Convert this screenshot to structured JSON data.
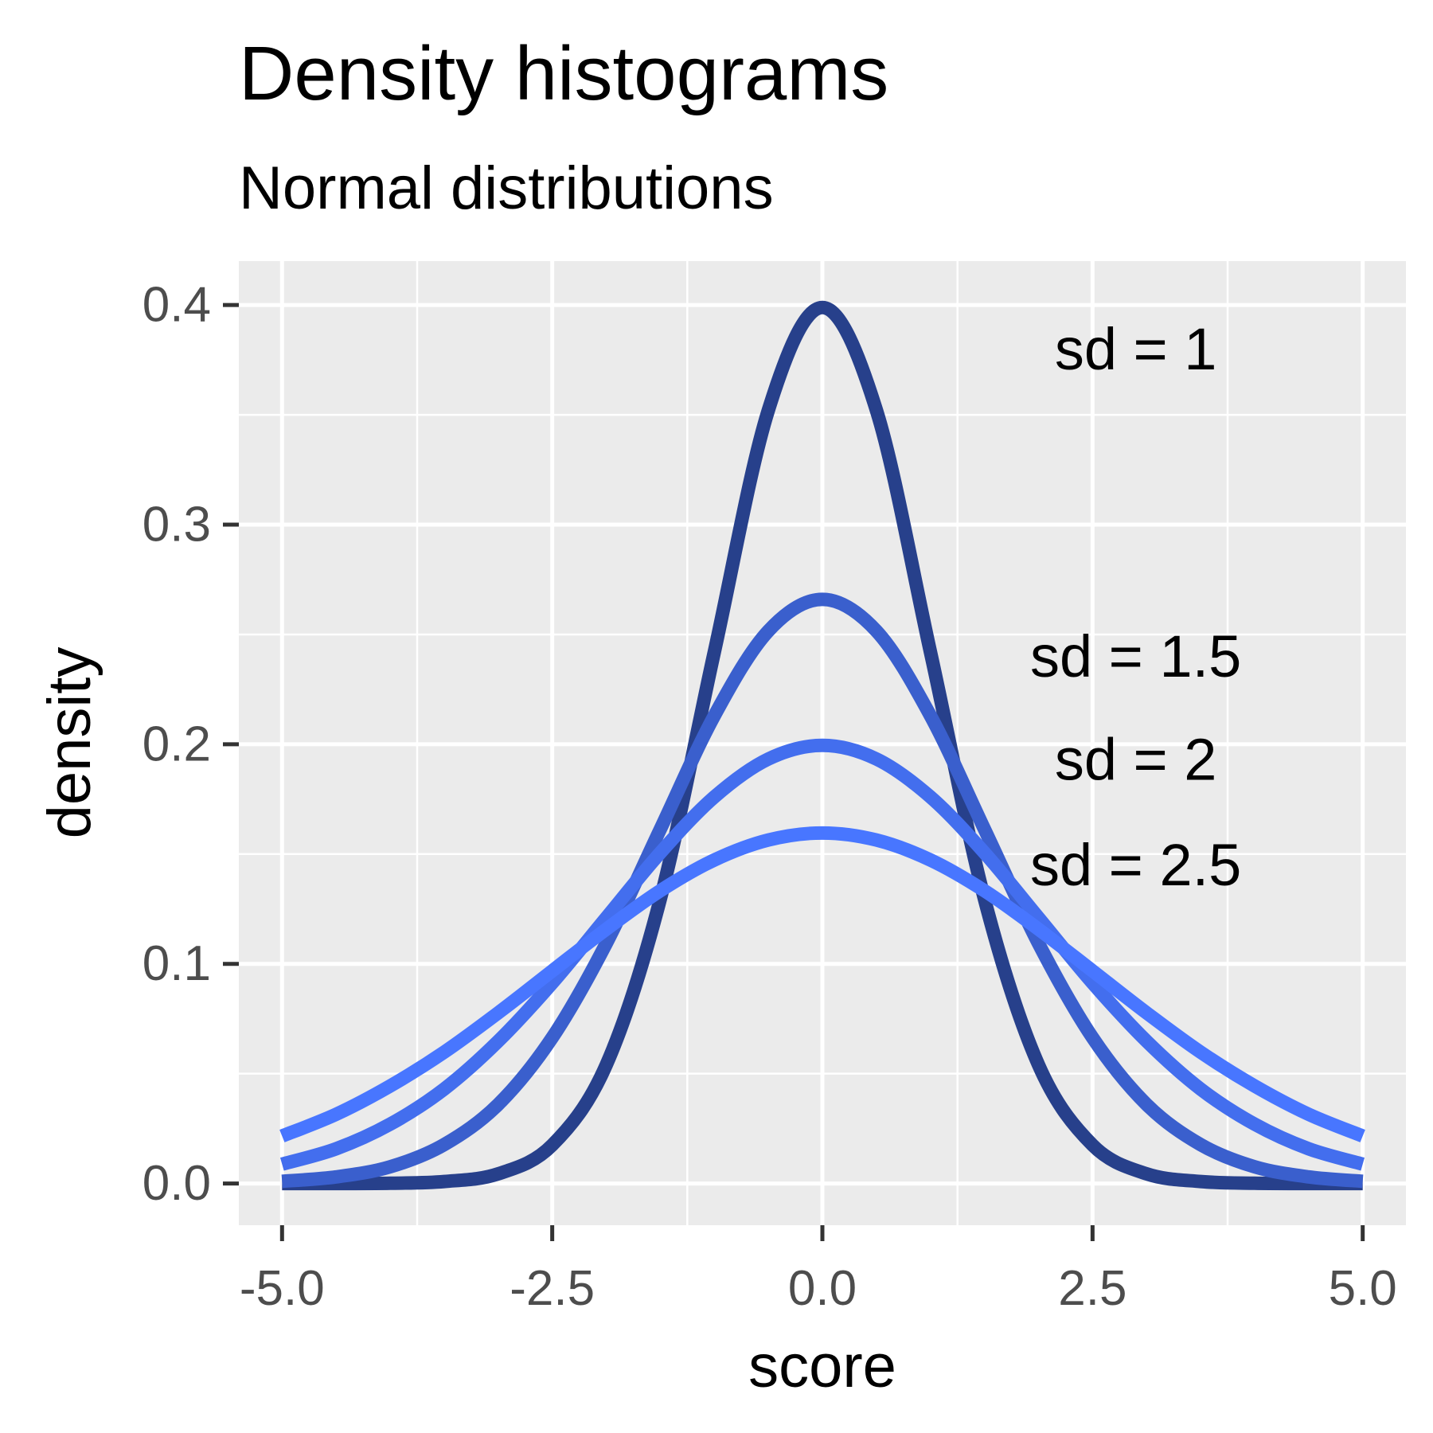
{
  "chart_data": {
    "type": "line",
    "title": "Density histograms",
    "subtitle": "Normal distributions",
    "xlabel": "score",
    "ylabel": "density",
    "xlim": [
      -5.4,
      5.4
    ],
    "ylim": [
      -0.019,
      0.42
    ],
    "x_ticks": [
      -5.0,
      -2.5,
      0.0,
      2.5,
      5.0
    ],
    "x_tick_labels": [
      "-5.0",
      "-2.5",
      "0.0",
      "2.5",
      "5.0"
    ],
    "y_ticks": [
      0.0,
      0.1,
      0.2,
      0.3,
      0.4
    ],
    "y_tick_labels": [
      "0.0",
      "0.1",
      "0.2",
      "0.3",
      "0.4"
    ],
    "grid": true,
    "background": "#ebebeb",
    "x": [
      -5,
      -4.5,
      -4,
      -3.5,
      -3,
      -2.5,
      -2,
      -1.5,
      -1,
      -0.5,
      0,
      0.5,
      1,
      1.5,
      2,
      2.5,
      3,
      3.5,
      4,
      4.5,
      5
    ],
    "series": [
      {
        "sd": 1,
        "color": "#27408b",
        "values": [
          0.0,
          0.0,
          0.0001,
          0.0009,
          0.0044,
          0.0175,
          0.054,
          0.1295,
          0.242,
          0.3521,
          0.3989,
          0.3521,
          0.242,
          0.1295,
          0.054,
          0.0175,
          0.0044,
          0.0009,
          0.0001,
          0.0,
          0.0
        ]
      },
      {
        "sd": 1.5,
        "color": "#3a5fcd",
        "values": [
          0.001,
          0.003,
          0.0076,
          0.0177,
          0.036,
          0.0664,
          0.1093,
          0.1613,
          0.213,
          0.2516,
          0.266,
          0.2516,
          0.213,
          0.1613,
          0.1093,
          0.0664,
          0.036,
          0.0177,
          0.0076,
          0.003,
          0.001
        ]
      },
      {
        "sd": 2,
        "color": "#436eee",
        "values": [
          0.0088,
          0.0158,
          0.027,
          0.043,
          0.0648,
          0.0913,
          0.121,
          0.1506,
          0.176,
          0.1933,
          0.1995,
          0.1933,
          0.176,
          0.1506,
          0.121,
          0.0913,
          0.0648,
          0.043,
          0.027,
          0.0158,
          0.0088
        ]
      },
      {
        "sd": 2.5,
        "color": "#4876ff",
        "values": [
          0.0216,
          0.0315,
          0.0444,
          0.0598,
          0.0777,
          0.0968,
          0.1158,
          0.1333,
          0.1473,
          0.1564,
          0.1596,
          0.1564,
          0.1473,
          0.1333,
          0.1158,
          0.0968,
          0.0777,
          0.0598,
          0.0444,
          0.0315,
          0.0216
        ]
      }
    ],
    "annotations": [
      {
        "text": "sd = 1",
        "x": 2.9,
        "y": 0.38
      },
      {
        "text": "sd = 1.5",
        "x": 2.9,
        "y": 0.24
      },
      {
        "text": "sd = 2",
        "x": 2.9,
        "y": 0.193
      },
      {
        "text": "sd = 2.5",
        "x": 2.9,
        "y": 0.145
      }
    ]
  }
}
